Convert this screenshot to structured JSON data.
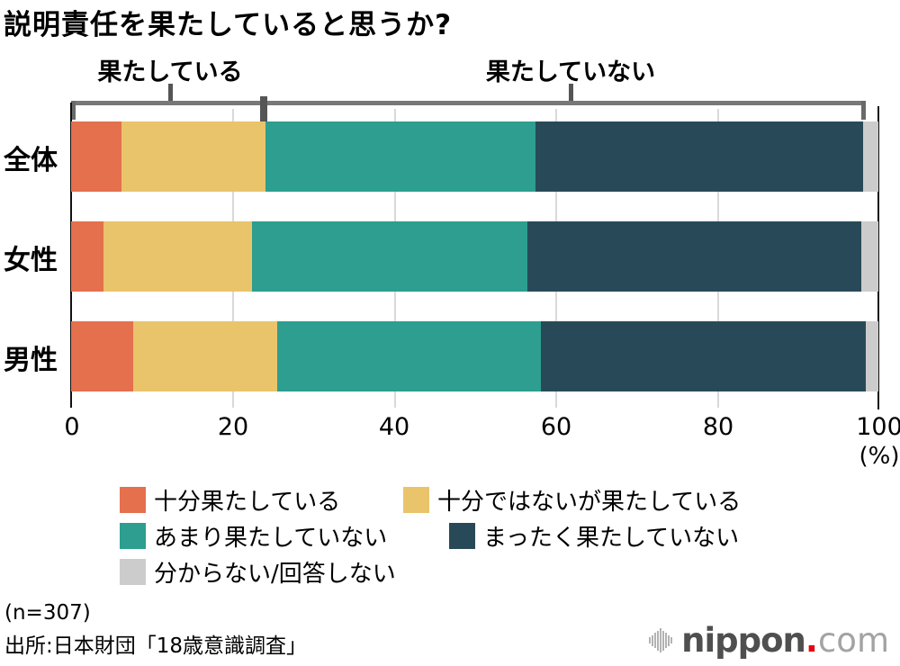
{
  "title": "説明責任を果たしていると思うか?",
  "bracket_labels": {
    "yes": "果たしている",
    "no": "果たしていない"
  },
  "x_axis": {
    "ticks": [
      "0",
      "20",
      "40",
      "60",
      "80",
      "100"
    ],
    "unit_label": "(%)"
  },
  "notes": {
    "sample_size": "(n=307)",
    "source": "出所:日本財団「18歳意識調査」"
  },
  "logo": {
    "brand": "nippon",
    "dot": ".",
    "suffix": "com",
    "dot_color": "#e60012"
  },
  "chart_data": {
    "type": "bar",
    "orientation": "horizontal-stacked",
    "title": "説明責任を果たしていると思うか?",
    "categories": [
      "全体",
      "女性",
      "男性"
    ],
    "series": [
      {
        "name": "十分果たしている",
        "color": "#E4704E",
        "values": [
          6.2,
          4.0,
          7.7
        ]
      },
      {
        "name": "十分ではないが果たしている",
        "color": "#E9C46B",
        "values": [
          17.9,
          18.4,
          17.8
        ]
      },
      {
        "name": "あまり果たしていない",
        "color": "#2D9E8F",
        "values": [
          33.4,
          34.1,
          32.7
        ]
      },
      {
        "name": "まったく果たしていない",
        "color": "#284A58",
        "values": [
          40.6,
          41.4,
          40.2
        ]
      },
      {
        "name": "分からない/回答しない",
        "color": "#CCCCCC",
        "values": [
          1.9,
          2.1,
          1.6
        ]
      }
    ],
    "xlim": [
      0,
      100
    ],
    "x_ticks": [
      0,
      20,
      40,
      60,
      80,
      100
    ],
    "unit": "%",
    "grid": "vertical-light-gray",
    "legend_position": "bottom",
    "bracket_spans": [
      {
        "label": "果たしている",
        "from": 0,
        "to": 24.1
      },
      {
        "label": "果たしていない",
        "from": 24.1,
        "to": 98.2
      }
    ],
    "sample_size": 307,
    "source": "日本財団「18歳意識調査」"
  }
}
